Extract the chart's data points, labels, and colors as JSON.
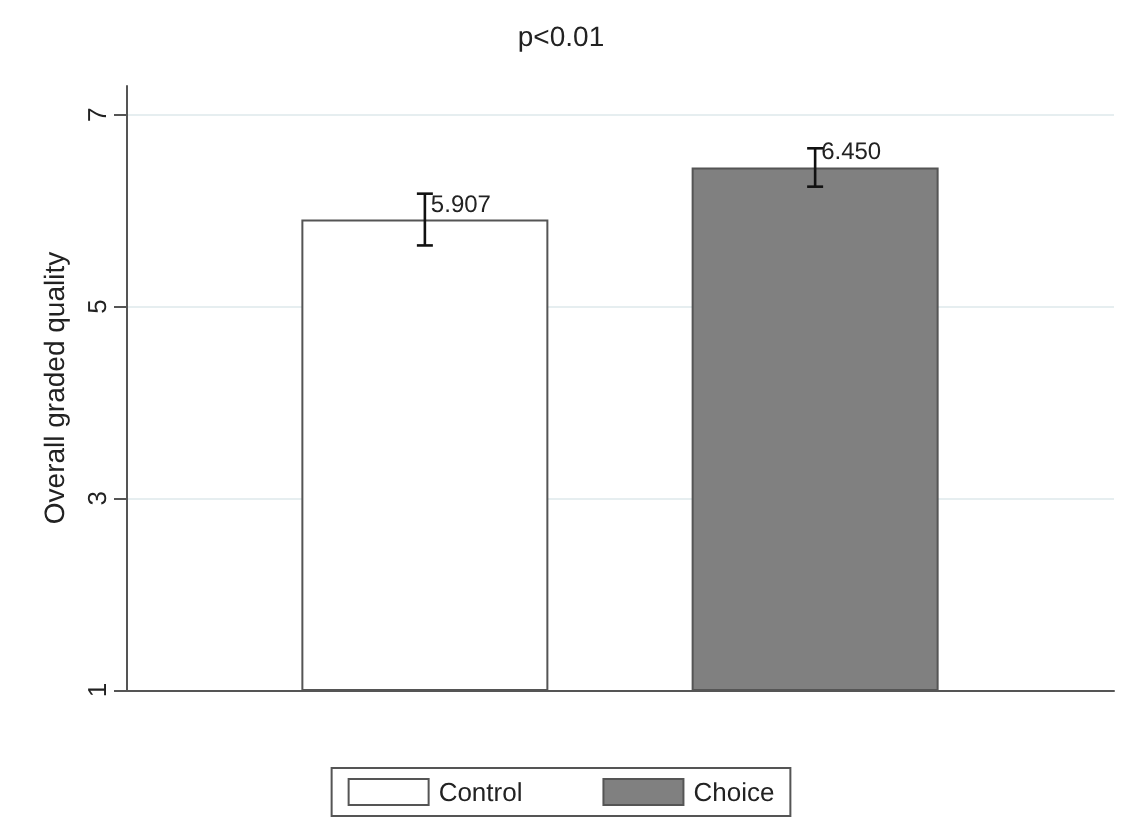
{
  "chart_data": {
    "type": "bar",
    "title": "p<0.01",
    "ylabel": "Overall graded quality",
    "categories": [
      null
    ],
    "series": [
      {
        "name": "Control",
        "color": "#ffffff",
        "values": [
          5.907
        ],
        "errors": [
          0.27
        ],
        "value_labels": [
          "5.907"
        ]
      },
      {
        "name": "Choice",
        "color": "#808080",
        "values": [
          6.45
        ],
        "errors": [
          0.2
        ],
        "value_labels": [
          "6.450"
        ]
      }
    ],
    "ylim": [
      1,
      7.3
    ],
    "yticks": [
      1,
      3,
      5,
      7
    ],
    "grid": "y",
    "legend": "bottom"
  }
}
